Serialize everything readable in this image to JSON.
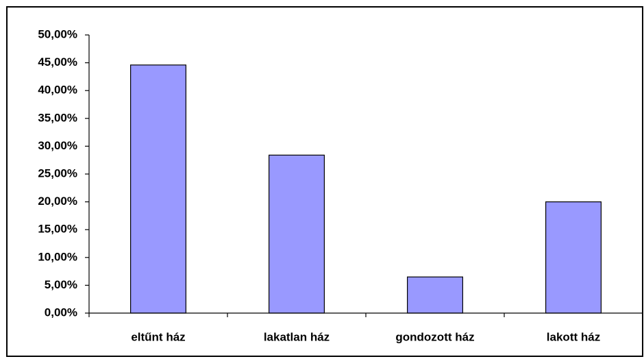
{
  "chart_data": {
    "type": "bar",
    "categories": [
      "eltűnt ház",
      "lakatlan ház",
      "gondozott ház",
      "lakott ház"
    ],
    "values": [
      44.6,
      28.4,
      6.5,
      20.0
    ],
    "color": "#9999ff",
    "ylim": [
      0,
      50
    ],
    "yticks": [
      {
        "value": 0,
        "label": "0,00%"
      },
      {
        "value": 5,
        "label": "5,00%"
      },
      {
        "value": 10,
        "label": "10,00%"
      },
      {
        "value": 15,
        "label": "15,00%"
      },
      {
        "value": 20,
        "label": "20,00%"
      },
      {
        "value": 25,
        "label": "25,00%"
      },
      {
        "value": 30,
        "label": "30,00%"
      },
      {
        "value": 35,
        "label": "35,00%"
      },
      {
        "value": 40,
        "label": "40,00%"
      },
      {
        "value": 45,
        "label": "45,00%"
      },
      {
        "value": 50,
        "label": "50,00%"
      }
    ],
    "grid": false
  }
}
